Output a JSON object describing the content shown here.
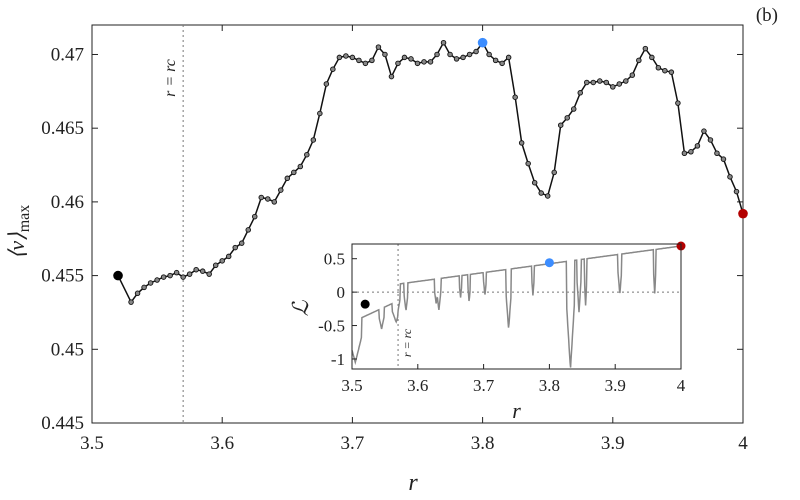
{
  "panel_label": "(b)",
  "chart_data": [
    {
      "type": "line",
      "xlabel": "r",
      "ylabel": "⟨v⟩max",
      "xlim": [
        3.5,
        4.0
      ],
      "ylim": [
        0.445,
        0.472
      ],
      "xticks": [
        "3.5",
        "3.6",
        "3.7",
        "3.8",
        "3.9",
        "4"
      ],
      "yticks": [
        "0.445",
        "0.45",
        "0.455",
        "0.46",
        "0.465",
        "0.47"
      ],
      "vline": {
        "x": 3.57,
        "label": "r = rc"
      },
      "series": [
        {
          "x": [
            3.52,
            3.53,
            3.535,
            3.54,
            3.545,
            3.55,
            3.555,
            3.56,
            3.565,
            3.57,
            3.575,
            3.58,
            3.585,
            3.59,
            3.595,
            3.6,
            3.605,
            3.61,
            3.615,
            3.62,
            3.625,
            3.63,
            3.635,
            3.64,
            3.645,
            3.65,
            3.655,
            3.66,
            3.665,
            3.67,
            3.675,
            3.68,
            3.685,
            3.69,
            3.695,
            3.7,
            3.705,
            3.71,
            3.715,
            3.72,
            3.725,
            3.73,
            3.735,
            3.74,
            3.745,
            3.75,
            3.755,
            3.76,
            3.765,
            3.77,
            3.775,
            3.78,
            3.785,
            3.79,
            3.795,
            3.8,
            3.805,
            3.81,
            3.815,
            3.82,
            3.825,
            3.83,
            3.835,
            3.84,
            3.845,
            3.85,
            3.855,
            3.86,
            3.865,
            3.87,
            3.875,
            3.88,
            3.885,
            3.89,
            3.895,
            3.9,
            3.905,
            3.91,
            3.915,
            3.92,
            3.925,
            3.93,
            3.935,
            3.94,
            3.945,
            3.95,
            3.955,
            3.96,
            3.965,
            3.97,
            3.975,
            3.98,
            3.985,
            3.99,
            3.995,
            4.0
          ],
          "y": [
            0.455,
            0.4532,
            0.4538,
            0.4542,
            0.4545,
            0.4547,
            0.4549,
            0.455,
            0.4552,
            0.4549,
            0.4551,
            0.4554,
            0.4553,
            0.4551,
            0.4557,
            0.456,
            0.4563,
            0.4569,
            0.4572,
            0.4581,
            0.459,
            0.4603,
            0.4602,
            0.46,
            0.4608,
            0.4616,
            0.462,
            0.4624,
            0.4632,
            0.4642,
            0.466,
            0.468,
            0.469,
            0.4698,
            0.4699,
            0.4698,
            0.4696,
            0.4694,
            0.4696,
            0.4705,
            0.47,
            0.4685,
            0.4694,
            0.4698,
            0.4697,
            0.4694,
            0.4695,
            0.4695,
            0.47,
            0.4708,
            0.47,
            0.4697,
            0.4698,
            0.47,
            0.4702,
            0.4708,
            0.47,
            0.4696,
            0.4694,
            0.4698,
            0.4671,
            0.464,
            0.4626,
            0.4613,
            0.4606,
            0.4604,
            0.462,
            0.4652,
            0.4657,
            0.4663,
            0.4674,
            0.4681,
            0.4681,
            0.4682,
            0.4681,
            0.4678,
            0.468,
            0.4682,
            0.4686,
            0.4696,
            0.4704,
            0.4698,
            0.4691,
            0.4689,
            0.4688,
            0.4667,
            0.4633,
            0.4634,
            0.4638,
            0.4648,
            0.4642,
            0.4633,
            0.4629,
            0.4617,
            0.4607,
            0.4592
          ]
        }
      ],
      "highlights": [
        {
          "x": 3.52,
          "y": 0.455,
          "color": "#000000"
        },
        {
          "x": 3.8,
          "y": 0.4708,
          "color": "#3c8dff"
        },
        {
          "x": 4.0,
          "y": 0.4592,
          "color": "#b30000"
        }
      ]
    },
    {
      "type": "line",
      "role": "inset",
      "xlabel": "r",
      "ylabel": "ℒ",
      "xlim": [
        3.5,
        4.0
      ],
      "ylim": [
        -1.15,
        0.72
      ],
      "xticks": [
        "3.5",
        "3.6",
        "3.7",
        "3.8",
        "3.9",
        "4"
      ],
      "yticks": [
        "-1",
        "-0.5",
        "0",
        "0.5"
      ],
      "zero_line": true,
      "vline": {
        "x": 3.57,
        "label": "r = rc"
      },
      "color": "#888888",
      "highlights": [
        {
          "x": 3.52,
          "y": -0.18,
          "color": "#000000"
        },
        {
          "x": 3.8,
          "y": 0.44,
          "color": "#3c8dff"
        },
        {
          "x": 4.0,
          "y": 0.69,
          "color": "#b30000"
        }
      ]
    }
  ]
}
